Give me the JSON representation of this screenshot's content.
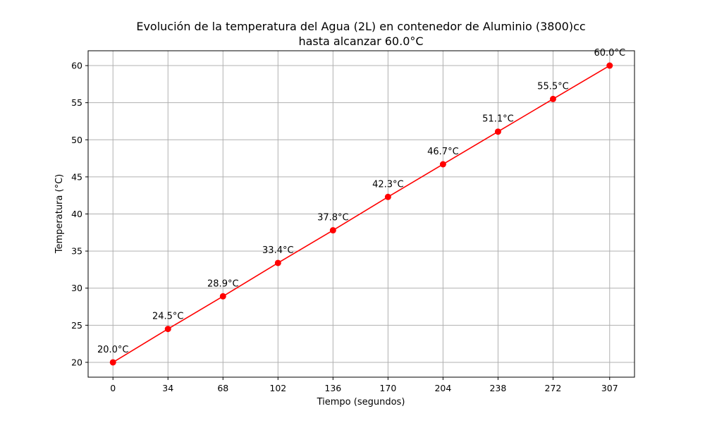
{
  "chart_data": {
    "type": "line",
    "title_line1": "Evolución de la temperatura del Agua (2L) en contenedor de Aluminio (3800)cc",
    "title_line2": "hasta alcanzar 60.0°C",
    "xlabel": "Tiempo (segundos)",
    "ylabel": "Temperatura (°C)",
    "x": [
      0,
      34,
      68,
      102,
      136,
      170,
      204,
      238,
      272,
      307
    ],
    "x_tick_labels": [
      "0",
      "34",
      "68",
      "102",
      "136",
      "170",
      "204",
      "238",
      "272",
      "307"
    ],
    "series": [
      {
        "values": [
          20.0,
          24.5,
          28.9,
          33.4,
          37.8,
          42.3,
          46.7,
          51.1,
          55.5,
          60.0
        ],
        "point_labels": [
          "20.0°C",
          "24.5°C",
          "28.9°C",
          "33.4°C",
          "37.8°C",
          "42.3°C",
          "46.7°C",
          "51.1°C",
          "55.5°C",
          "60.0°C"
        ],
        "color": "#ff0000"
      }
    ],
    "yticks": [
      20,
      25,
      30,
      35,
      40,
      45,
      50,
      55,
      60
    ],
    "y_tick_labels": [
      "20",
      "25",
      "30",
      "35",
      "40",
      "45",
      "50",
      "55",
      "60"
    ],
    "xlim": [
      -15.35,
      322.35
    ],
    "ylim": [
      18.0,
      62.0
    ],
    "grid": true,
    "colors": {
      "line": "#ff0000",
      "grid": "#b0b0b0",
      "axes": "#000000"
    }
  }
}
